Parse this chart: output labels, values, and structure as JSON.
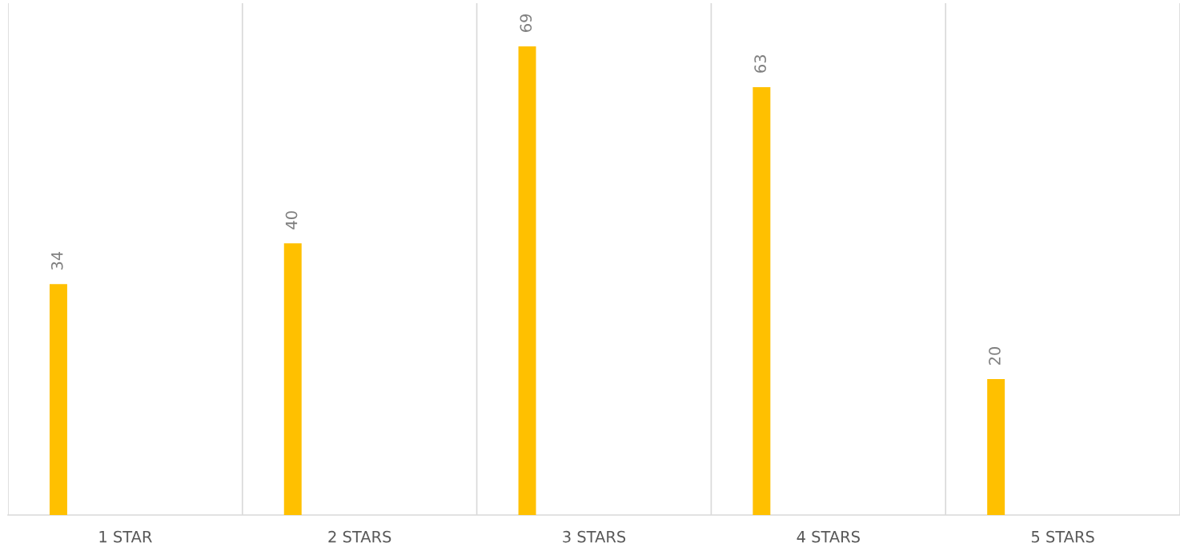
{
  "chart_data": {
    "type": "bar",
    "categories": [
      "1 STAR",
      "2 STARS",
      "3 STARS",
      "4 STARS",
      "5 STARS"
    ],
    "values": [
      34,
      40,
      69,
      63,
      20
    ],
    "color": "#ffc000",
    "data_labels": true,
    "grid": "x",
    "tick_labels": "x",
    "legend": false
  }
}
